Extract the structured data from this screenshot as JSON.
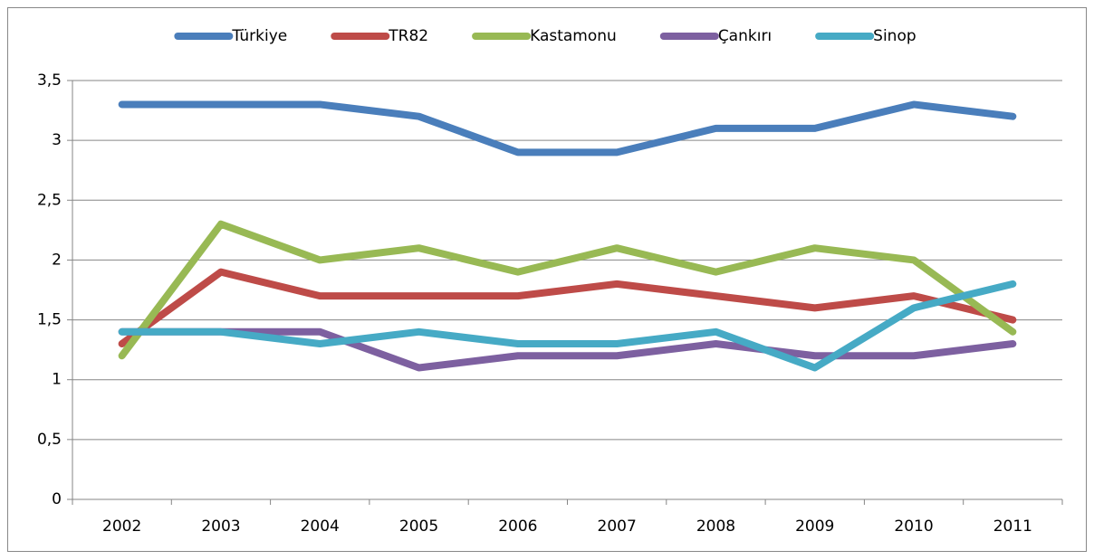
{
  "chart_data": {
    "type": "line",
    "categories": [
      "2002",
      "2003",
      "2004",
      "2005",
      "2006",
      "2007",
      "2008",
      "2009",
      "2010",
      "2011"
    ],
    "series": [
      {
        "name": "Türkiye",
        "color": "#4a7ebb",
        "values": [
          3.3,
          3.3,
          3.3,
          3.2,
          2.9,
          2.9,
          3.1,
          3.1,
          3.3,
          3.2
        ]
      },
      {
        "name": "TR82",
        "color": "#be4b48",
        "values": [
          1.3,
          1.9,
          1.7,
          1.7,
          1.7,
          1.8,
          1.7,
          1.6,
          1.7,
          1.5
        ]
      },
      {
        "name": "Kastamonu",
        "color": "#98b954",
        "values": [
          1.2,
          2.3,
          2.0,
          2.1,
          1.9,
          2.1,
          1.9,
          2.1,
          2.0,
          1.4
        ]
      },
      {
        "name": "Çankırı",
        "color": "#7d60a0",
        "values": [
          1.4,
          1.4,
          1.4,
          1.1,
          1.2,
          1.2,
          1.3,
          1.2,
          1.2,
          1.3
        ]
      },
      {
        "name": "Sinop",
        "color": "#46aac5",
        "values": [
          1.4,
          1.4,
          1.3,
          1.4,
          1.3,
          1.3,
          1.4,
          1.1,
          1.6,
          1.8
        ]
      }
    ],
    "ylim": [
      0,
      3.5
    ],
    "yticks": [
      0,
      {
        "value": 0.5,
        "label": "0,5"
      },
      1,
      {
        "value": 1.5,
        "label": "1,5"
      },
      2,
      {
        "value": 2.5,
        "label": "2,5"
      },
      3,
      {
        "value": 3.5,
        "label": "3,5"
      }
    ],
    "grid": true,
    "legend": "top"
  }
}
